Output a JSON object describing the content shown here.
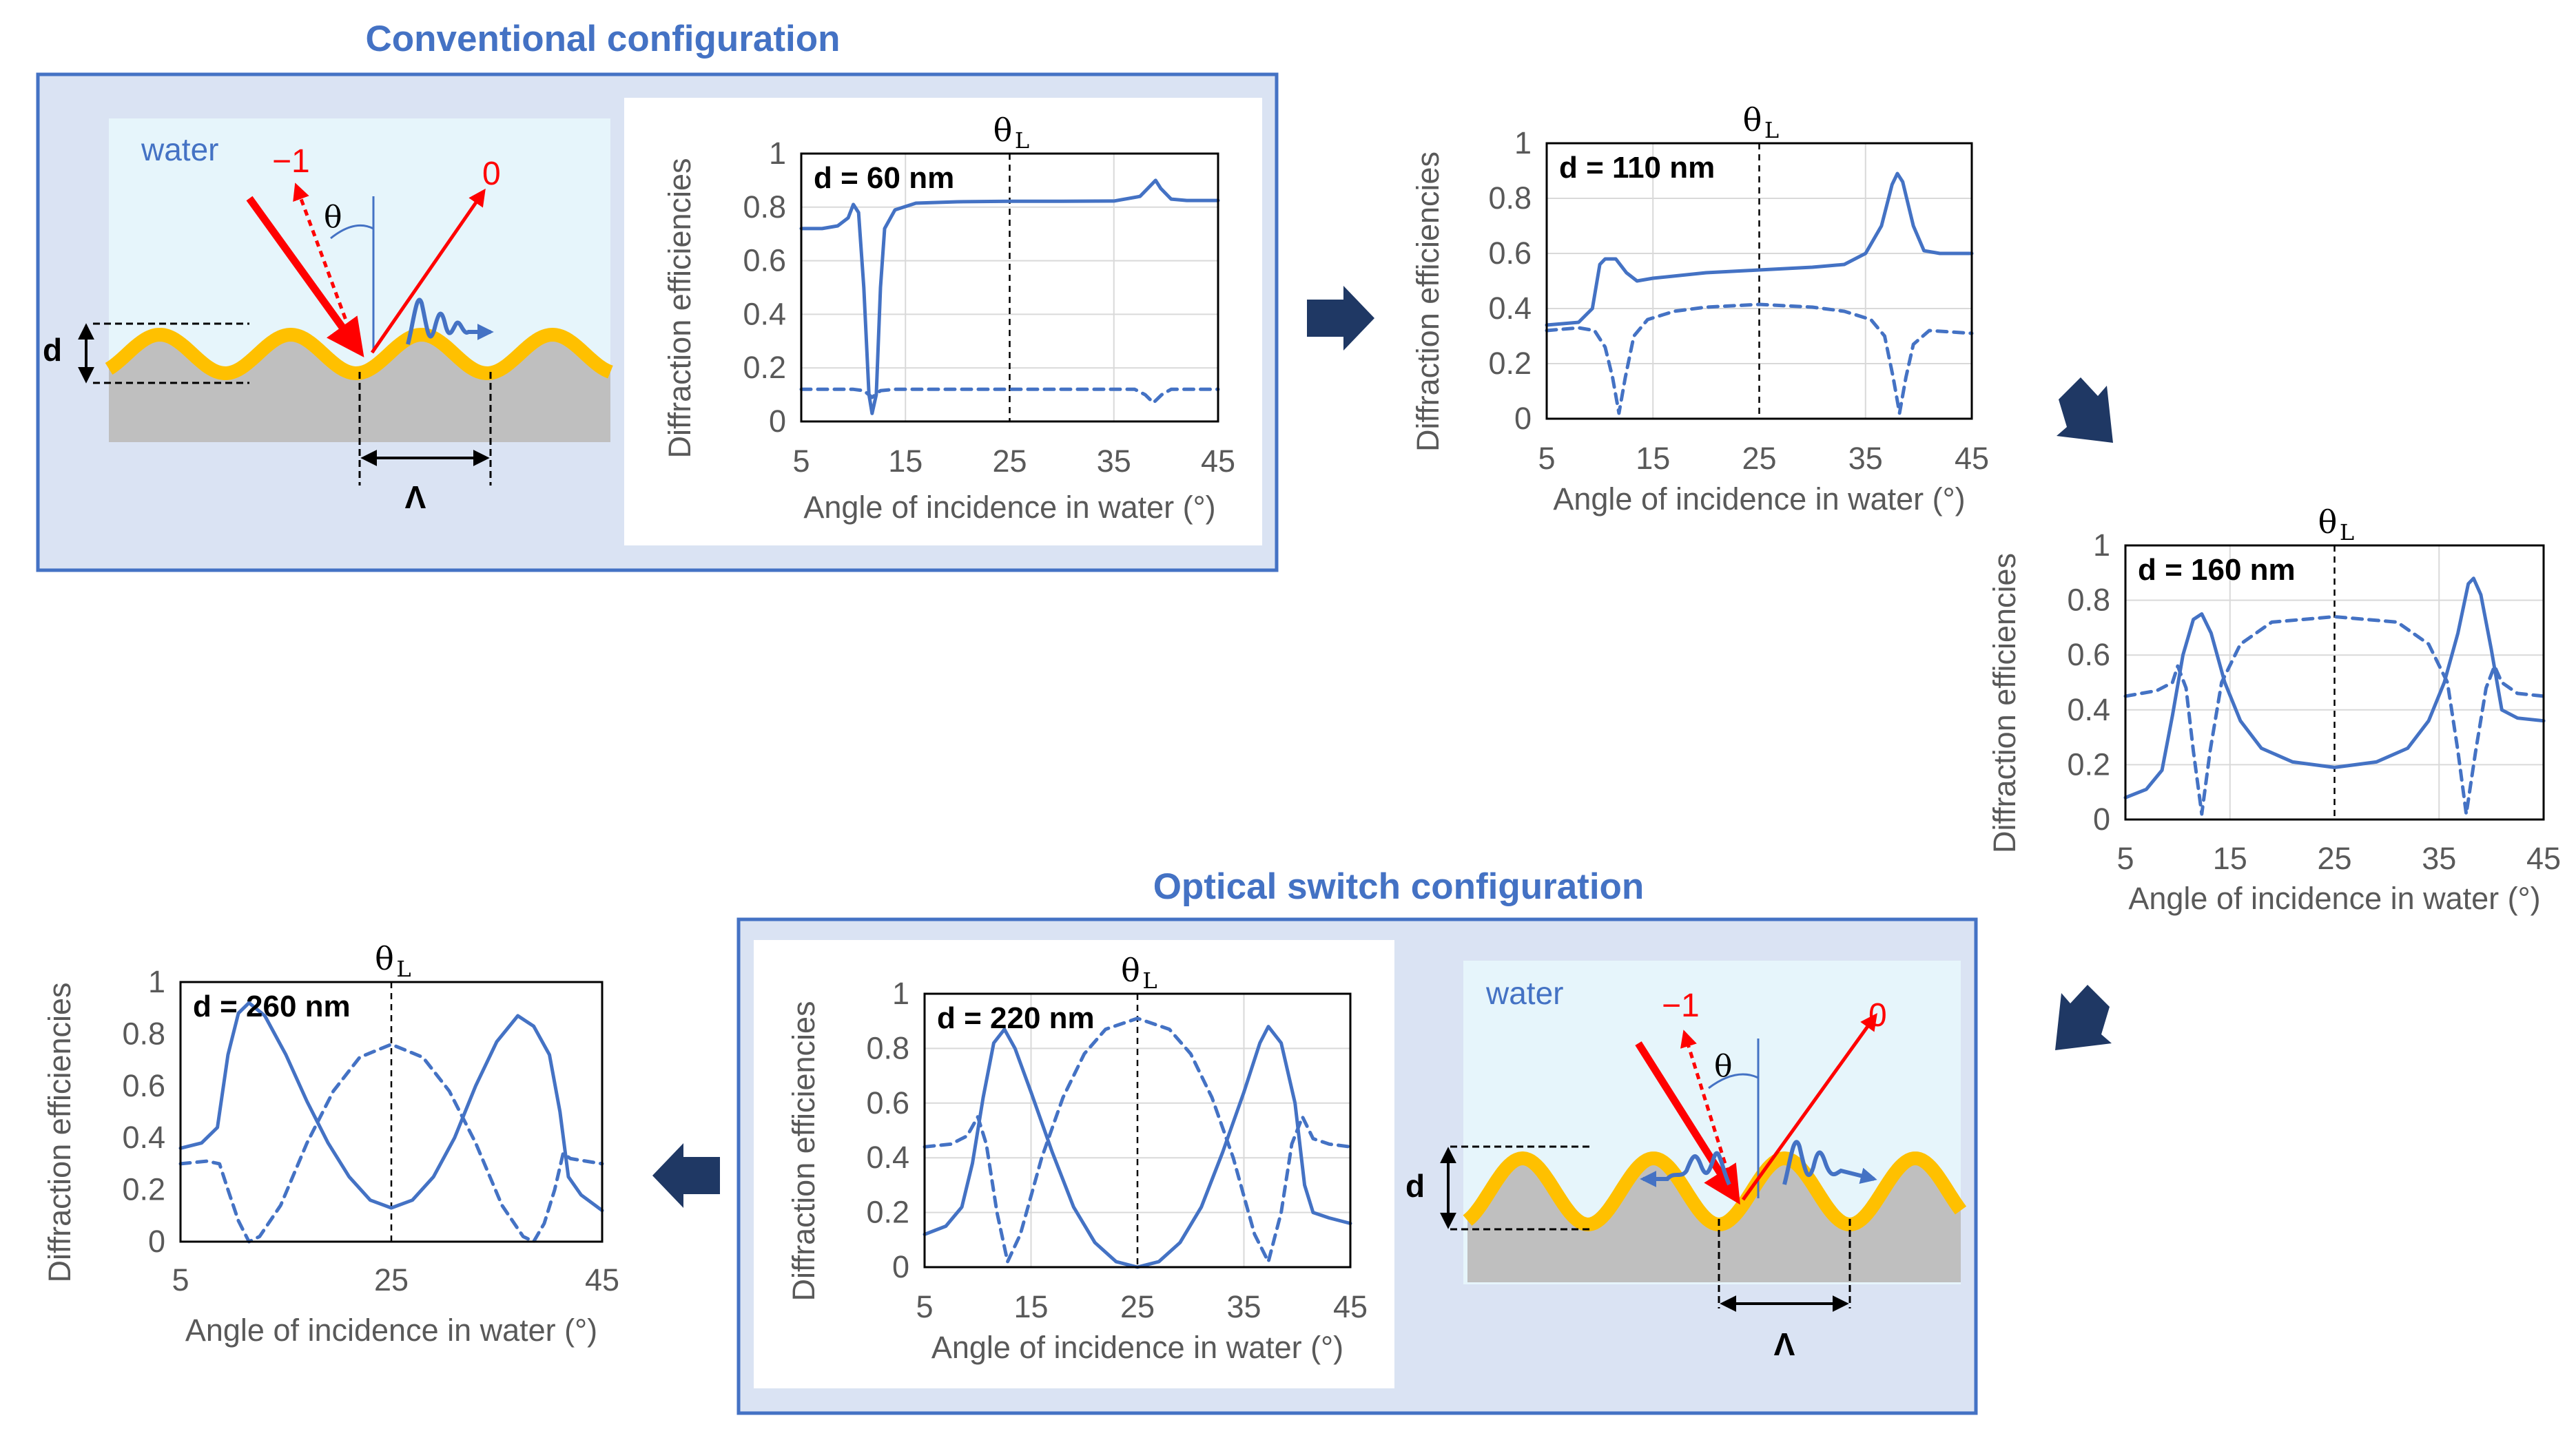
{
  "headings": {
    "conventional": "Conventional configuration",
    "optical_switch": "Optical switch configuration"
  },
  "colors": {
    "accent": "#4472C4",
    "panel_fill": "#DAE3F3",
    "water_fill": "#E6F5FB",
    "gold": "#FFC000",
    "substrate": "#BFBFBF",
    "beam": "#FF0000",
    "arrow": "#1F3864"
  },
  "diagram": {
    "medium": "water",
    "order_minus1": "−1",
    "order_0": "0",
    "theta": "θ",
    "depth": "d",
    "period": "Λ"
  },
  "arrows": [
    "right-arrow",
    "down-right-arrow",
    "down-left-arrow",
    "left-arrow"
  ],
  "chart_data": [
    {
      "id": "c60",
      "type": "line",
      "panel_label": "d = 60 nm",
      "marker_label": "θ",
      "marker_sub": "L",
      "marker_x": 25,
      "xlabel": "Angle of incidence in water (°)",
      "ylabel": "Diffraction efficiencies",
      "xlim": [
        5,
        45
      ],
      "ylim": [
        0,
        1
      ],
      "xticks": [
        5,
        15,
        25,
        35,
        45
      ],
      "yticks": [
        0,
        0.2,
        0.4,
        0.6,
        0.8,
        1
      ],
      "grid": true,
      "series": [
        {
          "style": "solid",
          "points": [
            [
              5,
              0.72
            ],
            [
              7,
              0.72
            ],
            [
              8.5,
              0.73
            ],
            [
              9.5,
              0.76
            ],
            [
              10,
              0.81
            ],
            [
              10.5,
              0.78
            ],
            [
              11,
              0.5
            ],
            [
              11.5,
              0.1
            ],
            [
              11.8,
              0.03
            ],
            [
              12.2,
              0.1
            ],
            [
              12.6,
              0.5
            ],
            [
              13,
              0.72
            ],
            [
              14,
              0.79
            ],
            [
              16,
              0.815
            ],
            [
              20,
              0.82
            ],
            [
              25,
              0.822
            ],
            [
              30,
              0.822
            ],
            [
              35,
              0.823
            ],
            [
              37.5,
              0.84
            ],
            [
              38.5,
              0.88
            ],
            [
              39,
              0.9
            ],
            [
              39.5,
              0.87
            ],
            [
              40.5,
              0.83
            ],
            [
              42,
              0.825
            ],
            [
              45,
              0.825
            ]
          ]
        },
        {
          "style": "dashed",
          "points": [
            [
              5,
              0.12
            ],
            [
              10,
              0.12
            ],
            [
              11,
              0.115
            ],
            [
              11.8,
              0.09
            ],
            [
              12.6,
              0.115
            ],
            [
              14,
              0.12
            ],
            [
              25,
              0.12
            ],
            [
              37,
              0.12
            ],
            [
              38,
              0.1
            ],
            [
              38.8,
              0.07
            ],
            [
              39.6,
              0.1
            ],
            [
              40.5,
              0.12
            ],
            [
              45,
              0.12
            ]
          ]
        }
      ]
    },
    {
      "id": "c110",
      "type": "line",
      "panel_label": "d = 110 nm",
      "marker_label": "θ",
      "marker_sub": "L",
      "marker_x": 25,
      "xlabel": "Angle of incidence in water (°)",
      "ylabel": "Diffraction efficiencies",
      "xlim": [
        5,
        45
      ],
      "ylim": [
        0,
        1
      ],
      "xticks": [
        5,
        15,
        25,
        35,
        45
      ],
      "yticks": [
        0,
        0.2,
        0.4,
        0.6,
        0.8,
        1
      ],
      "grid": true,
      "series": [
        {
          "style": "solid",
          "points": [
            [
              5,
              0.34
            ],
            [
              8,
              0.35
            ],
            [
              9.3,
              0.4
            ],
            [
              10,
              0.56
            ],
            [
              10.5,
              0.58
            ],
            [
              11.5,
              0.58
            ],
            [
              12.5,
              0.53
            ],
            [
              13.5,
              0.5
            ],
            [
              15,
              0.51
            ],
            [
              20,
              0.53
            ],
            [
              25,
              0.54
            ],
            [
              30,
              0.55
            ],
            [
              33,
              0.56
            ],
            [
              35,
              0.6
            ],
            [
              36.5,
              0.7
            ],
            [
              37.5,
              0.85
            ],
            [
              38,
              0.89
            ],
            [
              38.5,
              0.86
            ],
            [
              39.5,
              0.7
            ],
            [
              40.5,
              0.61
            ],
            [
              42,
              0.6
            ],
            [
              45,
              0.6
            ]
          ]
        },
        {
          "style": "dashed",
          "points": [
            [
              5,
              0.32
            ],
            [
              8,
              0.33
            ],
            [
              9.5,
              0.32
            ],
            [
              10.5,
              0.26
            ],
            [
              11.2,
              0.15
            ],
            [
              11.8,
              0.02
            ],
            [
              12.4,
              0.15
            ],
            [
              13.2,
              0.3
            ],
            [
              14.5,
              0.36
            ],
            [
              17,
              0.39
            ],
            [
              20,
              0.405
            ],
            [
              25,
              0.415
            ],
            [
              30,
              0.405
            ],
            [
              33,
              0.39
            ],
            [
              35.5,
              0.36
            ],
            [
              36.8,
              0.3
            ],
            [
              37.6,
              0.15
            ],
            [
              38.2,
              0.02
            ],
            [
              38.8,
              0.15
            ],
            [
              39.5,
              0.27
            ],
            [
              41,
              0.32
            ],
            [
              45,
              0.31
            ]
          ]
        }
      ]
    },
    {
      "id": "c160",
      "type": "line",
      "panel_label": "d = 160 nm",
      "marker_label": "θ",
      "marker_sub": "L",
      "marker_x": 25,
      "xlabel": "Angle of incidence in water (°)",
      "ylabel": "Diffraction efficiencies",
      "xlim": [
        5,
        45
      ],
      "ylim": [
        0,
        1
      ],
      "xticks": [
        5,
        15,
        25,
        35,
        45
      ],
      "yticks": [
        0,
        0.2,
        0.4,
        0.6,
        0.8,
        1
      ],
      "grid": true,
      "series": [
        {
          "style": "solid",
          "points": [
            [
              5,
              0.08
            ],
            [
              7,
              0.11
            ],
            [
              8.5,
              0.18
            ],
            [
              9.5,
              0.38
            ],
            [
              10.5,
              0.6
            ],
            [
              11.5,
              0.73
            ],
            [
              12.3,
              0.75
            ],
            [
              13.2,
              0.68
            ],
            [
              14.5,
              0.5
            ],
            [
              16,
              0.36
            ],
            [
              18,
              0.26
            ],
            [
              21,
              0.21
            ],
            [
              25,
              0.19
            ],
            [
              29,
              0.21
            ],
            [
              32,
              0.26
            ],
            [
              34,
              0.36
            ],
            [
              35.5,
              0.5
            ],
            [
              36.8,
              0.68
            ],
            [
              37.8,
              0.86
            ],
            [
              38.3,
              0.88
            ],
            [
              39,
              0.82
            ],
            [
              40,
              0.62
            ],
            [
              41,
              0.4
            ],
            [
              42.5,
              0.37
            ],
            [
              45,
              0.36
            ]
          ]
        },
        {
          "style": "dashed",
          "points": [
            [
              5,
              0.45
            ],
            [
              8,
              0.47
            ],
            [
              9.5,
              0.5
            ],
            [
              10,
              0.56
            ],
            [
              10.8,
              0.48
            ],
            [
              11.5,
              0.25
            ],
            [
              12.3,
              0.02
            ],
            [
              13.1,
              0.25
            ],
            [
              14.2,
              0.5
            ],
            [
              16,
              0.64
            ],
            [
              19,
              0.72
            ],
            [
              25,
              0.74
            ],
            [
              31,
              0.72
            ],
            [
              34,
              0.64
            ],
            [
              35.8,
              0.5
            ],
            [
              36.8,
              0.25
            ],
            [
              37.6,
              0.02
            ],
            [
              38.5,
              0.25
            ],
            [
              39.5,
              0.48
            ],
            [
              40.3,
              0.56
            ],
            [
              41,
              0.5
            ],
            [
              42.5,
              0.46
            ],
            [
              45,
              0.45
            ]
          ]
        }
      ]
    },
    {
      "id": "c220",
      "type": "line",
      "panel_label": "d = 220 nm",
      "marker_label": "θ",
      "marker_sub": "L",
      "marker_x": 25,
      "xlabel": "Angle of incidence in water (°)",
      "ylabel": "Diffraction efficiencies",
      "xlim": [
        5,
        45
      ],
      "ylim": [
        0,
        1
      ],
      "xticks": [
        5,
        15,
        25,
        35,
        45
      ],
      "yticks": [
        0,
        0.2,
        0.4,
        0.6,
        0.8,
        1
      ],
      "grid": true,
      "series": [
        {
          "style": "solid",
          "points": [
            [
              5,
              0.12
            ],
            [
              7,
              0.15
            ],
            [
              8.5,
              0.22
            ],
            [
              9.5,
              0.38
            ],
            [
              10.5,
              0.62
            ],
            [
              11.5,
              0.82
            ],
            [
              12.5,
              0.87
            ],
            [
              13.5,
              0.8
            ],
            [
              15,
              0.64
            ],
            [
              17,
              0.42
            ],
            [
              19,
              0.22
            ],
            [
              21,
              0.09
            ],
            [
              23,
              0.02
            ],
            [
              25,
              0.0
            ],
            [
              27,
              0.02
            ],
            [
              29,
              0.09
            ],
            [
              31,
              0.22
            ],
            [
              33,
              0.42
            ],
            [
              35,
              0.64
            ],
            [
              36.5,
              0.82
            ],
            [
              37.3,
              0.88
            ],
            [
              38.5,
              0.82
            ],
            [
              39.8,
              0.6
            ],
            [
              40.7,
              0.3
            ],
            [
              41.5,
              0.2
            ],
            [
              43,
              0.18
            ],
            [
              45,
              0.16
            ]
          ]
        },
        {
          "style": "dashed",
          "points": [
            [
              5,
              0.44
            ],
            [
              7.5,
              0.45
            ],
            [
              9,
              0.48
            ],
            [
              10,
              0.55
            ],
            [
              10.8,
              0.45
            ],
            [
              11.8,
              0.2
            ],
            [
              12.8,
              0.02
            ],
            [
              14,
              0.12
            ],
            [
              16,
              0.4
            ],
            [
              18,
              0.62
            ],
            [
              20,
              0.78
            ],
            [
              22,
              0.87
            ],
            [
              25,
              0.91
            ],
            [
              28,
              0.87
            ],
            [
              30,
              0.78
            ],
            [
              32,
              0.62
            ],
            [
              34,
              0.4
            ],
            [
              36,
              0.12
            ],
            [
              37.3,
              0.02
            ],
            [
              38.5,
              0.2
            ],
            [
              39.5,
              0.45
            ],
            [
              40.5,
              0.55
            ],
            [
              41.5,
              0.47
            ],
            [
              43,
              0.45
            ],
            [
              45,
              0.44
            ]
          ]
        }
      ]
    },
    {
      "id": "c260",
      "type": "line",
      "panel_label": "d = 260 nm",
      "marker_label": "θ",
      "marker_sub": "L",
      "marker_x": 25,
      "xlabel": "Angle of incidence in water (°)",
      "ylabel": "Diffraction efficiencies",
      "xlim": [
        5,
        45
      ],
      "ylim": [
        0,
        1
      ],
      "xticks": [
        5,
        25,
        45
      ],
      "yticks": [
        0,
        0.2,
        0.4,
        0.6,
        0.8,
        1
      ],
      "grid": false,
      "series": [
        {
          "style": "solid",
          "points": [
            [
              5,
              0.36
            ],
            [
              7,
              0.38
            ],
            [
              8.5,
              0.44
            ],
            [
              9.5,
              0.72
            ],
            [
              10.5,
              0.88
            ],
            [
              11.5,
              0.92
            ],
            [
              13,
              0.87
            ],
            [
              15,
              0.72
            ],
            [
              17,
              0.54
            ],
            [
              19,
              0.38
            ],
            [
              21,
              0.25
            ],
            [
              23,
              0.16
            ],
            [
              25,
              0.13
            ],
            [
              27,
              0.16
            ],
            [
              29,
              0.25
            ],
            [
              31,
              0.4
            ],
            [
              33,
              0.6
            ],
            [
              35,
              0.77
            ],
            [
              37,
              0.87
            ],
            [
              38.5,
              0.83
            ],
            [
              40,
              0.72
            ],
            [
              41,
              0.5
            ],
            [
              41.8,
              0.25
            ],
            [
              43,
              0.18
            ],
            [
              45,
              0.12
            ]
          ]
        },
        {
          "style": "dashed",
          "points": [
            [
              5,
              0.3
            ],
            [
              7.5,
              0.31
            ],
            [
              8.7,
              0.3
            ],
            [
              9.5,
              0.2
            ],
            [
              10.5,
              0.08
            ],
            [
              11.5,
              0.0
            ],
            [
              12.5,
              0.02
            ],
            [
              14.5,
              0.14
            ],
            [
              17,
              0.38
            ],
            [
              19.5,
              0.58
            ],
            [
              22,
              0.71
            ],
            [
              25,
              0.76
            ],
            [
              28,
              0.71
            ],
            [
              30.5,
              0.58
            ],
            [
              33,
              0.38
            ],
            [
              35.5,
              0.14
            ],
            [
              37.5,
              0.02
            ],
            [
              38.5,
              0.0
            ],
            [
              39.5,
              0.07
            ],
            [
              40.5,
              0.2
            ],
            [
              41.3,
              0.34
            ],
            [
              42,
              0.32
            ],
            [
              45,
              0.3
            ]
          ]
        }
      ]
    }
  ]
}
